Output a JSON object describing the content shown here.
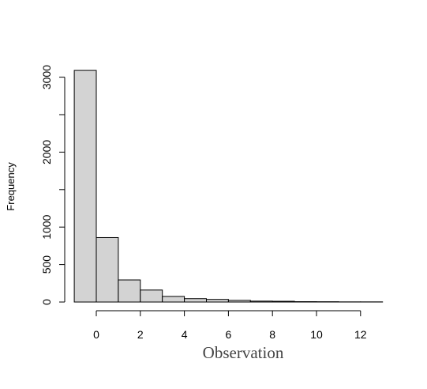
{
  "chart_data": {
    "type": "histogram",
    "title": "",
    "xlabel": "Observation",
    "ylabel": "Frequency",
    "bins": [
      {
        "from": -1,
        "to": 0,
        "count": 3090
      },
      {
        "from": 0,
        "to": 1,
        "count": 860
      },
      {
        "from": 1,
        "to": 2,
        "count": 295
      },
      {
        "from": 2,
        "to": 3,
        "count": 160
      },
      {
        "from": 3,
        "to": 4,
        "count": 75
      },
      {
        "from": 4,
        "to": 5,
        "count": 45
      },
      {
        "from": 5,
        "to": 6,
        "count": 35
      },
      {
        "from": 6,
        "to": 7,
        "count": 22
      },
      {
        "from": 7,
        "to": 8,
        "count": 12
      },
      {
        "from": 8,
        "to": 9,
        "count": 10
      },
      {
        "from": 9,
        "to": 10,
        "count": 5
      },
      {
        "from": 10,
        "to": 11,
        "count": 4
      },
      {
        "from": 11,
        "to": 12,
        "count": 2
      },
      {
        "from": 12,
        "to": 13,
        "count": 2
      }
    ],
    "xticks": [
      0,
      2,
      4,
      6,
      8,
      10,
      12
    ],
    "xtick_labels": [
      "0",
      "2",
      "4",
      "6",
      "8",
      "10",
      "12"
    ],
    "yticks": [
      0,
      500,
      1000,
      1500,
      2000,
      2500,
      3000
    ],
    "ytick_labels": [
      "0",
      "500",
      "1000",
      "",
      "2000",
      "",
      "3000"
    ],
    "xlim": [
      -1,
      13
    ],
    "ylim": [
      0,
      3090
    ],
    "bar_color": "#d3d3d3",
    "edge_color": "#000000",
    "grid": false,
    "legend": "none"
  }
}
